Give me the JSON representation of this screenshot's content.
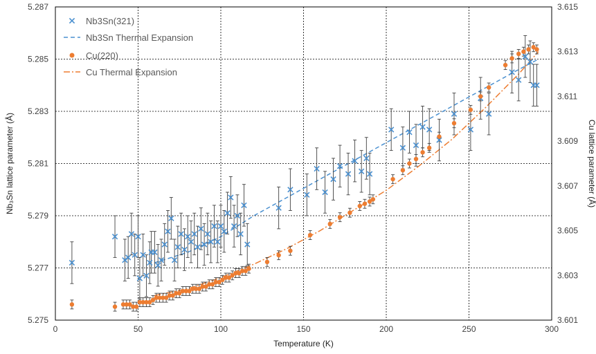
{
  "chart_data": {
    "type": "scatter",
    "xlabel": "Temperature (K)",
    "ylabel_left": "Nb₃Sn lattice parameter (Å)",
    "ylabel_right": "Cu lattice parameter (Å)",
    "xlim": [
      0,
      300
    ],
    "ylim_left": [
      5.275,
      5.287
    ],
    "ylim_right": [
      3.601,
      3.615
    ],
    "x_ticks": [
      0,
      50,
      100,
      150,
      200,
      250,
      300
    ],
    "y_ticks_left": [
      5.275,
      5.277,
      5.279,
      5.281,
      5.283,
      5.285,
      5.287
    ],
    "y_ticks_right": [
      3.601,
      3.603,
      3.605,
      3.607,
      3.609,
      3.611,
      3.613,
      3.615
    ],
    "grid": true,
    "legend_position": "top-left",
    "colors": {
      "nb3sn": "#4A90D0",
      "cu": "#ED7D31",
      "grid": "#000000"
    },
    "series": [
      {
        "name": "Nb3Sn(321)",
        "marker": "x",
        "axis": "left",
        "x": [
          10,
          36,
          42,
          44,
          46,
          48,
          50,
          51,
          53,
          55,
          57,
          58,
          60,
          62,
          64,
          66,
          68,
          70,
          72,
          74,
          76,
          78,
          80,
          82,
          84,
          86,
          88,
          90,
          92,
          94,
          96,
          98,
          100,
          102,
          104,
          106,
          108,
          110,
          112,
          114,
          116,
          135,
          142,
          152,
          158,
          163,
          168,
          172,
          177,
          181,
          185,
          188,
          190,
          203,
          210,
          214,
          218,
          222,
          226,
          232,
          241,
          251,
          257,
          262,
          276,
          280,
          284,
          287,
          289,
          291
        ],
        "y": [
          5.2772,
          5.2782,
          5.2773,
          5.2774,
          5.2783,
          5.2775,
          5.2782,
          5.2766,
          5.2775,
          5.2767,
          5.2772,
          5.2776,
          5.2776,
          5.2771,
          5.2773,
          5.2779,
          5.2784,
          5.2789,
          5.2773,
          5.2778,
          5.2783,
          5.2777,
          5.2782,
          5.278,
          5.2783,
          5.2778,
          5.2785,
          5.2779,
          5.2783,
          5.278,
          5.2786,
          5.278,
          5.2786,
          5.2784,
          5.2791,
          5.2797,
          5.2786,
          5.279,
          5.2783,
          5.2794,
          5.2779,
          5.2793,
          5.28,
          5.2798,
          5.2808,
          5.2799,
          5.2804,
          5.2809,
          5.2806,
          5.2811,
          5.2807,
          5.2812,
          5.2806,
          5.2823,
          5.2816,
          5.2822,
          5.2817,
          5.2824,
          5.2823,
          5.2819,
          5.2829,
          5.2823,
          5.2835,
          5.2829,
          5.2845,
          5.2842,
          5.2851,
          5.2849,
          5.284,
          5.284
        ],
        "error": 0.0008
      },
      {
        "name": "Nb3Sn Thermal Expansion",
        "style": "dashed",
        "axis": "left",
        "x": [
          60,
          80,
          100,
          120,
          140,
          160,
          180,
          200,
          220,
          240,
          260,
          280,
          292
        ],
        "y": [
          5.2772,
          5.2776,
          5.2782,
          5.279,
          5.2797,
          5.2804,
          5.2811,
          5.2818,
          5.2825,
          5.2832,
          5.2839,
          5.2846,
          5.285
        ]
      },
      {
        "name": "Cu(220)",
        "marker": "circle",
        "axis": "right",
        "x": [
          10,
          36,
          41,
          43,
          45,
          47,
          49,
          51,
          53,
          55,
          57,
          59,
          61,
          63,
          65,
          67,
          69,
          71,
          73,
          75,
          77,
          79,
          81,
          83,
          85,
          87,
          89,
          91,
          93,
          95,
          97,
          99,
          101,
          103,
          105,
          107,
          109,
          111,
          113,
          115,
          117,
          128,
          135,
          142,
          154,
          166,
          172,
          178,
          184,
          187,
          190,
          192,
          204,
          210,
          214,
          218,
          222,
          226,
          232,
          241,
          251,
          257,
          262,
          272,
          276,
          280,
          283,
          286,
          289,
          291
        ],
        "y": [
          3.6017,
          3.6016,
          3.6017,
          3.6017,
          3.6017,
          3.6016,
          3.6016,
          3.6018,
          3.6018,
          3.6018,
          3.6018,
          3.6019,
          3.602,
          3.602,
          3.602,
          3.602,
          3.6021,
          3.6021,
          3.6022,
          3.6022,
          3.6023,
          3.6023,
          3.6023,
          3.6024,
          3.6024,
          3.6024,
          3.6025,
          3.6025,
          3.6026,
          3.6026,
          3.6027,
          3.6027,
          3.6028,
          3.6029,
          3.6029,
          3.603,
          3.6031,
          3.6031,
          3.6032,
          3.6032,
          3.6033,
          3.6036,
          3.6039,
          3.6041,
          3.6048,
          3.6053,
          3.6056,
          3.6058,
          3.6061,
          3.6062,
          3.6063,
          3.6064,
          3.6073,
          3.6077,
          3.608,
          3.6082,
          3.6085,
          3.6087,
          3.6092,
          3.6098,
          3.6104,
          3.611,
          3.6114,
          3.6124,
          3.6127,
          3.6129,
          3.613,
          3.6131,
          3.6132,
          3.6131
        ],
        "error": 0.0002
      },
      {
        "name": "Cu Thermal Expansion",
        "style": "dashdot",
        "axis": "right",
        "x": [
          60,
          80,
          100,
          120,
          140,
          160,
          180,
          200,
          220,
          240,
          260,
          280,
          292
        ],
        "y": [
          3.6021,
          3.6024,
          3.6029,
          3.6035,
          3.6042,
          3.605,
          3.6059,
          3.6068,
          3.6079,
          3.6091,
          3.6105,
          3.612,
          3.613
        ]
      }
    ]
  }
}
